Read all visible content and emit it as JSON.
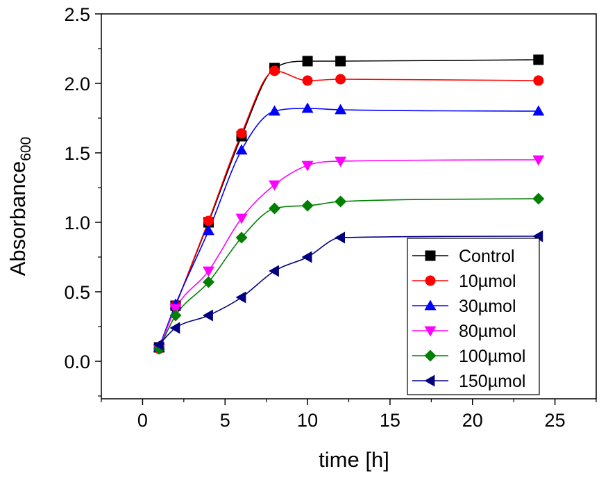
{
  "chart_data": {
    "type": "line",
    "title": "",
    "xlabel": "time [h]",
    "ylabel_main": "Absorbance",
    "ylabel_sub": "600",
    "xlim": [
      -2.5,
      27.5
    ],
    "ylim": [
      -0.27,
      2.5
    ],
    "xticks": [
      0,
      5,
      10,
      15,
      20,
      25
    ],
    "xtick_labels": [
      "0",
      "5",
      "10",
      "15",
      "20",
      "25"
    ],
    "yticks": [
      0.0,
      0.5,
      1.0,
      1.5,
      2.0,
      2.5
    ],
    "ytick_labels": [
      "0.0",
      "0.5",
      "1.0",
      "1.5",
      "2.0",
      "2.5"
    ],
    "grid": false,
    "legend_position": "lower-right",
    "x": [
      1,
      2,
      4,
      6,
      8,
      10,
      12,
      24
    ],
    "series": [
      {
        "name": "Control",
        "color": "#000000",
        "marker": "square",
        "values": [
          0.1,
          0.4,
          1.0,
          1.62,
          2.11,
          2.16,
          2.16,
          2.17
        ]
      },
      {
        "name": "10µmol",
        "color": "#ff0000",
        "marker": "circle",
        "values": [
          0.09,
          0.4,
          1.01,
          1.64,
          2.09,
          2.02,
          2.03,
          2.02
        ]
      },
      {
        "name": "30µmol",
        "color": "#0000ff",
        "marker": "triangle-up",
        "values": [
          0.1,
          0.41,
          0.94,
          1.52,
          1.8,
          1.82,
          1.81,
          1.8
        ]
      },
      {
        "name": "80µmol",
        "color": "#ff00ff",
        "marker": "triangle-down",
        "values": [
          0.09,
          0.38,
          0.65,
          1.03,
          1.27,
          1.41,
          1.44,
          1.45
        ]
      },
      {
        "name": "100µmol",
        "color": "#008000",
        "marker": "diamond",
        "values": [
          0.09,
          0.33,
          0.57,
          0.89,
          1.1,
          1.12,
          1.15,
          1.17
        ]
      },
      {
        "name": "150µmol",
        "color": "#000080",
        "marker": "triangle-left",
        "values": [
          0.12,
          0.24,
          0.33,
          0.46,
          0.65,
          0.75,
          0.89,
          0.9
        ]
      }
    ]
  }
}
